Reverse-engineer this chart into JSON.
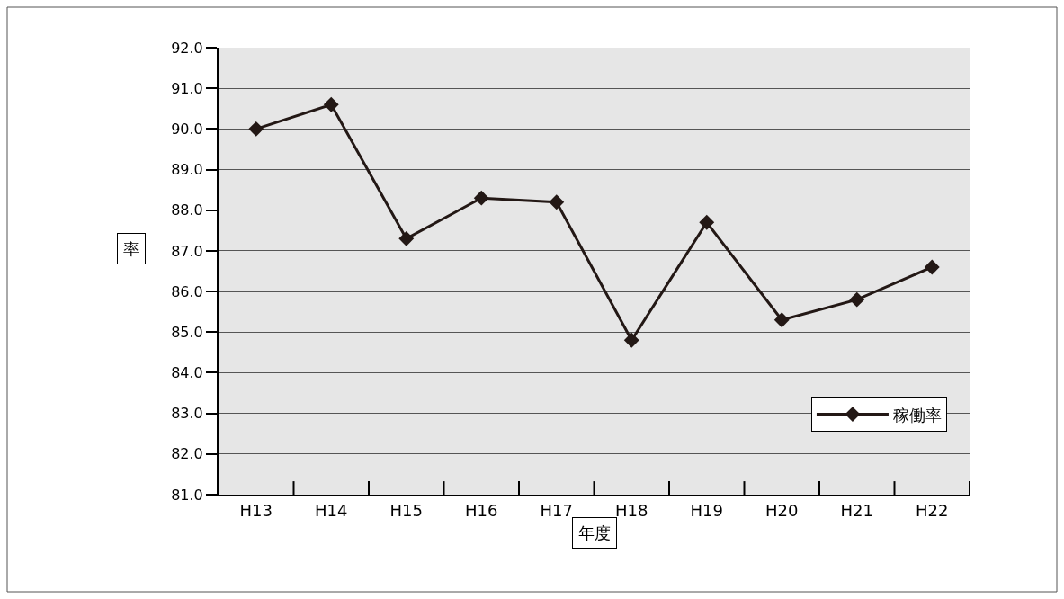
{
  "chart_data": {
    "type": "line",
    "xlabel": "年度",
    "ylabel": "率",
    "categories": [
      "H13",
      "H14",
      "H15",
      "H16",
      "H17",
      "H18",
      "H19",
      "H20",
      "H21",
      "H22"
    ],
    "series": [
      {
        "name": "稼働率",
        "color": "#231815",
        "values": [
          90.0,
          90.6,
          87.3,
          88.3,
          88.2,
          84.8,
          87.7,
          85.3,
          85.8,
          86.6
        ]
      }
    ],
    "ylim": [
      81.0,
      92.0
    ],
    "yticks": [
      {
        "value": 81,
        "label": "81.0"
      },
      {
        "value": 82,
        "label": "82.0"
      },
      {
        "value": 83,
        "label": "83.0"
      },
      {
        "value": 84,
        "label": "84.0"
      },
      {
        "value": 85,
        "label": "85.0"
      },
      {
        "value": 86,
        "label": "86.0"
      },
      {
        "value": 87,
        "label": "87.0"
      },
      {
        "value": 88,
        "label": "88.0"
      },
      {
        "value": 89,
        "label": "89.0"
      },
      {
        "value": 90,
        "label": "90.0"
      },
      {
        "value": 91,
        "label": "91.0"
      },
      {
        "value": 92,
        "label": "92.0"
      }
    ],
    "grid": "y",
    "legend": "bottom right",
    "marker": "diamond",
    "line_style": "solid"
  }
}
